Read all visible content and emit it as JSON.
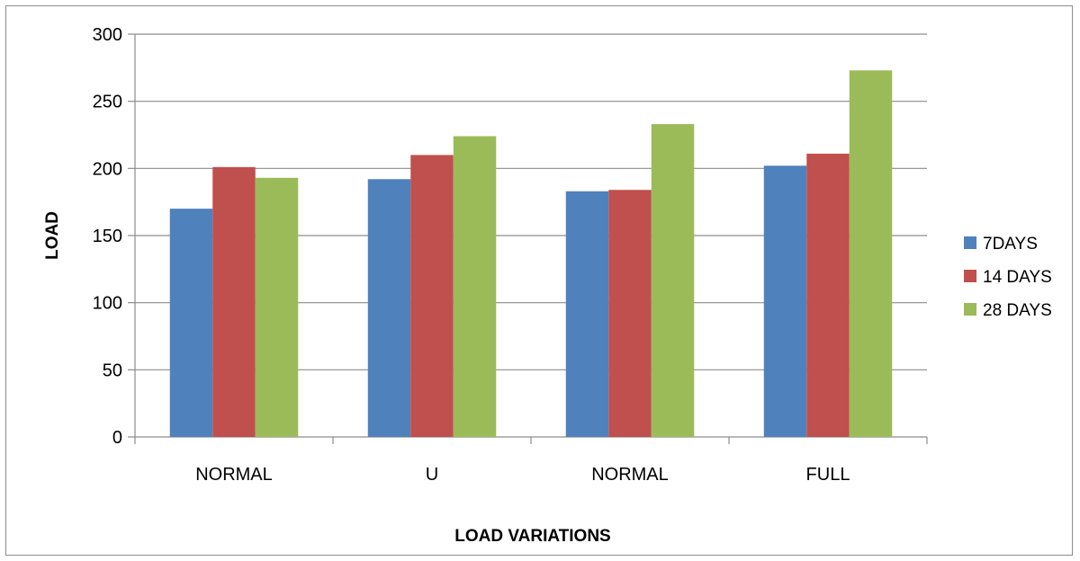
{
  "chart_data": {
    "type": "bar",
    "title": "",
    "xlabel": "LOAD VARIATIONS",
    "ylabel": "LOAD",
    "categories": [
      "NORMAL",
      "U",
      "NORMAL",
      "FULL"
    ],
    "series": [
      {
        "name": "7DAYS",
        "color": "#4F81BD",
        "values": [
          170,
          192,
          183,
          202
        ]
      },
      {
        "name": "14 DAYS",
        "color": "#C0504D",
        "values": [
          201,
          210,
          184,
          211
        ]
      },
      {
        "name": "28 DAYS",
        "color": "#9BBB59",
        "values": [
          193,
          224,
          233,
          273
        ]
      }
    ],
    "ylim": [
      0,
      300
    ],
    "yticks": [
      0,
      50,
      100,
      150,
      200,
      250,
      300
    ],
    "grid": true,
    "legend_position": "right"
  }
}
